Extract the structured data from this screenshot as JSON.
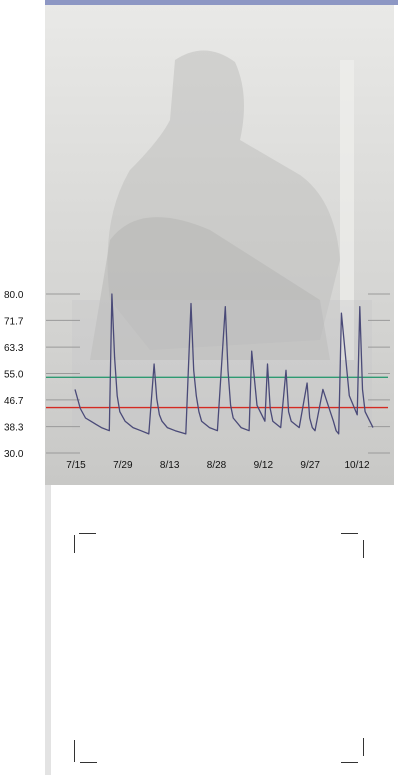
{
  "colors": {
    "series": "#4a4a78",
    "upper_line": "#2e9a72",
    "lower_line": "#d42a22",
    "photo": "#dadad8",
    "topbar": "#8d97c4"
  },
  "chart_data": {
    "type": "line",
    "title": "",
    "xlabel": "",
    "ylabel": "",
    "ylim": [
      30.0,
      80.0
    ],
    "y_ticks": [
      "80.0",
      "71.7",
      "63.3",
      "55.0",
      "46.7",
      "38.3",
      "30.0"
    ],
    "y_tick_values": [
      80.0,
      71.7,
      63.3,
      55.0,
      46.7,
      38.3,
      30.0
    ],
    "x_tick_labels": [
      "7/15",
      "7/29",
      "8/13",
      "8/28",
      "9/12",
      "9/27",
      "10/12"
    ],
    "grid": false,
    "legend": "none",
    "reference_lines": [
      {
        "value": 53.8,
        "color": "#2e9a72"
      },
      {
        "value": 44.3,
        "color": "#d42a22"
      }
    ],
    "series": [
      {
        "color": "#4a4a78",
        "x": [
          0,
          2,
          4,
          6,
          8,
          10,
          13,
          14,
          15,
          16,
          17,
          19,
          22,
          25,
          28,
          30,
          31,
          32,
          33,
          35,
          38,
          42,
          44,
          45,
          46,
          47,
          48,
          51,
          54,
          57,
          58,
          59,
          60,
          63,
          66,
          67,
          69,
          72,
          73,
          74,
          75,
          78,
          80,
          81,
          82,
          85,
          88,
          89,
          90,
          91,
          94,
          98,
          99,
          100,
          101,
          104,
          107,
          108,
          109,
          110,
          113
        ],
        "y": [
          50,
          44,
          41,
          40,
          39,
          38,
          37,
          80,
          60,
          48,
          43,
          40,
          38,
          37,
          36,
          58,
          47,
          42,
          40,
          38,
          37,
          36,
          77,
          56,
          48,
          43,
          40,
          38,
          37,
          76,
          56,
          45,
          41,
          38,
          37,
          62,
          45,
          40,
          58,
          44,
          40,
          38,
          56,
          43,
          40,
          38,
          52,
          41,
          38,
          37,
          50,
          40,
          37,
          36,
          74,
          48,
          42,
          76,
          50,
          43,
          38
        ]
      }
    ]
  }
}
